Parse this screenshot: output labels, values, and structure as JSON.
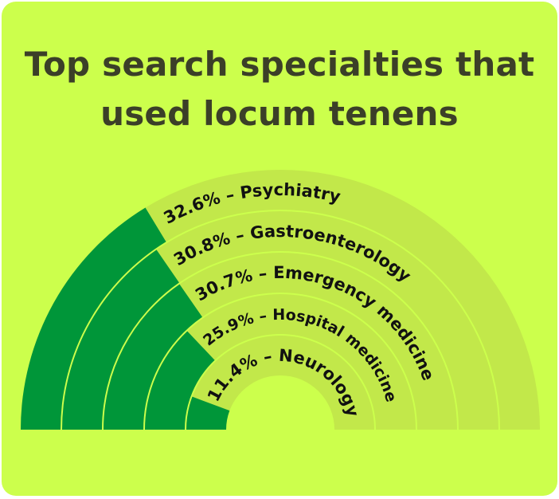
{
  "title_lines": [
    "Top search specialties that",
    "used locum tenens"
  ],
  "colors": {
    "background": "#ccff4c",
    "filled": "#009639",
    "track": "#c2e84a",
    "title": "#3b3f28"
  },
  "chart_data": {
    "type": "radial-bar",
    "title": "Top search specialties that used locum tenens",
    "max": 100,
    "span_degrees": 180,
    "categories": [
      "Psychiatry",
      "Gastroenterology",
      "Emergency medicine",
      "Hospital medicine",
      "Neurology"
    ],
    "values": [
      32.6,
      30.8,
      30.7,
      25.9,
      11.4
    ],
    "labels": [
      "32.6% – Psychiatry",
      "30.8% – Gastroenterology",
      "30.7% – Emergency medicine",
      "25.9% – Hospital medicine",
      "11.4% – Neurology"
    ]
  }
}
